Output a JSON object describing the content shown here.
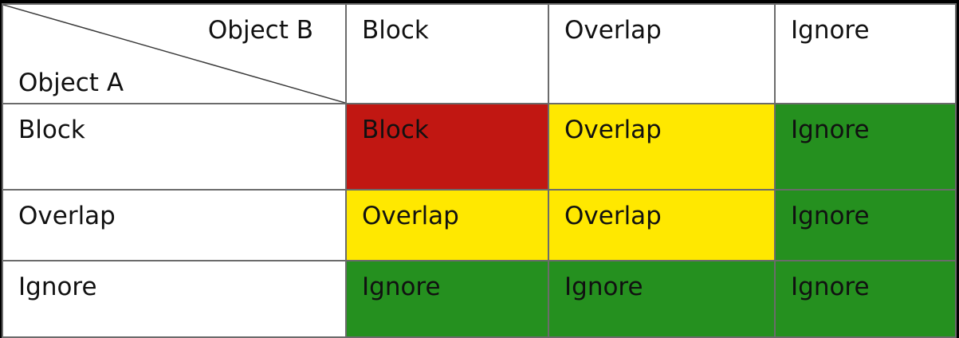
{
  "matrix": {
    "corner": {
      "column_axis_label": "Object B",
      "row_axis_label": "Object A"
    },
    "column_headers": [
      "Block",
      "Overlap",
      "Ignore"
    ],
    "rows": [
      {
        "header": "Block",
        "cells": [
          "Block",
          "Overlap",
          "Ignore"
        ]
      },
      {
        "header": "Overlap",
        "cells": [
          "Overlap",
          "Overlap",
          "Ignore"
        ]
      },
      {
        "header": "Ignore",
        "cells": [
          "Ignore",
          "Ignore",
          "Ignore"
        ]
      }
    ]
  },
  "colors": {
    "block": "#c11712",
    "overlap": "#ffe800",
    "ignore": "#25901f",
    "header_background": "#ffffff",
    "grid_line": "#6b6b6b",
    "page_background": "#000000"
  }
}
